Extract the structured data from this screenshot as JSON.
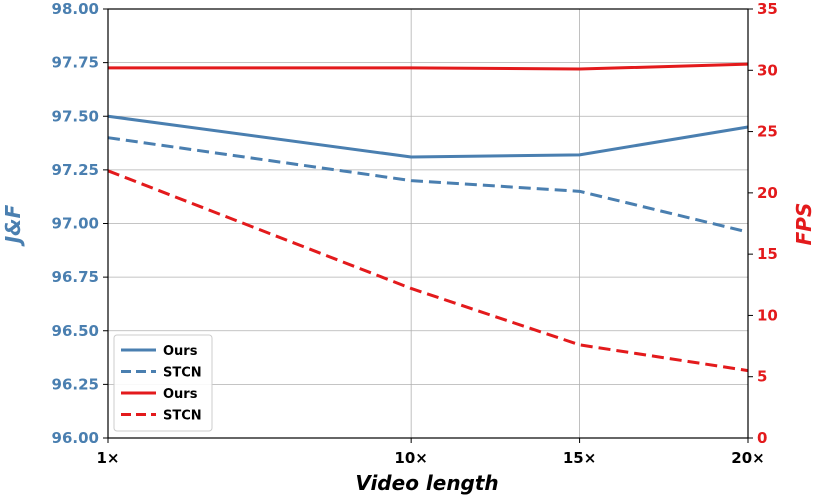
{
  "chart_data": {
    "type": "line",
    "xlabel": "Video length",
    "ylabel_left": "J&F",
    "ylabel_right": "FPS",
    "categories": [
      "1×",
      "10×",
      "15×",
      "20×"
    ],
    "x_positions": [
      1,
      10,
      15,
      20
    ],
    "xlim": [
      1,
      20
    ],
    "ylim_left": [
      96.0,
      98.0
    ],
    "ylim_right": [
      0,
      35
    ],
    "yticks_left": [
      "96.00",
      "96.25",
      "96.50",
      "96.75",
      "97.00",
      "97.25",
      "97.50",
      "97.75",
      "98.00"
    ],
    "yticks_right": [
      "0",
      "5",
      "10",
      "15",
      "20",
      "25",
      "30",
      "35"
    ],
    "grid": true,
    "legend_position": "bottom-left",
    "colors": {
      "left_axis": "#4a7fb0",
      "right_axis": "#e31a1c",
      "grid": "#b0b0b0"
    },
    "series": [
      {
        "name": "Ours",
        "axis": "left",
        "style": "solid",
        "color": "#4a7fb0",
        "values": [
          97.5,
          97.31,
          97.32,
          97.45
        ]
      },
      {
        "name": "STCN",
        "axis": "left",
        "style": "dashed",
        "color": "#4a7fb0",
        "values": [
          97.4,
          97.2,
          97.15,
          96.96
        ]
      },
      {
        "name": "Ours",
        "axis": "right",
        "style": "solid",
        "color": "#e31a1c",
        "values": [
          30.2,
          30.2,
          30.1,
          30.5
        ]
      },
      {
        "name": "STCN",
        "axis": "right",
        "style": "dashed",
        "color": "#e31a1c",
        "values": [
          21.8,
          12.2,
          7.6,
          5.5
        ]
      }
    ]
  }
}
